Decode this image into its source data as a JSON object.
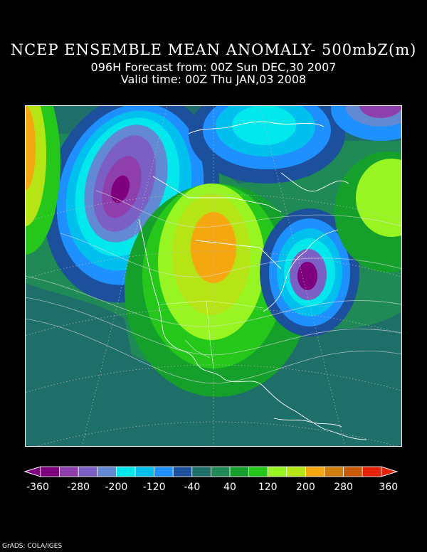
{
  "header": {
    "title": "NCEP ENSEMBLE MEAN ANOMALY- 500mbZ(m)",
    "forecast": "096H Forecast from: 00Z Sun DEC,30 2007",
    "valid": "Valid time: 00Z Thu JAN,03 2008"
  },
  "colorbar": {
    "colors": [
      "#7f007f",
      "#8f3fab",
      "#7b5fc4",
      "#6289d4",
      "#00e8ec",
      "#00c0ee",
      "#1e90ff",
      "#1c4f9c",
      "#1e6e6a",
      "#1f8a55",
      "#14a02a",
      "#25c81a",
      "#99f521",
      "#b6e516",
      "#f5a710",
      "#d07d10",
      "#c95b05",
      "#e72208"
    ],
    "labels": [
      "-360",
      "-280",
      "-200",
      "-120",
      "-40",
      "40",
      "120",
      "200",
      "280",
      "360"
    ],
    "label_positions": [
      0,
      2,
      4,
      6,
      8,
      10,
      12,
      14,
      16,
      18
    ]
  },
  "credit": "GrADS: COLA/IGES"
}
